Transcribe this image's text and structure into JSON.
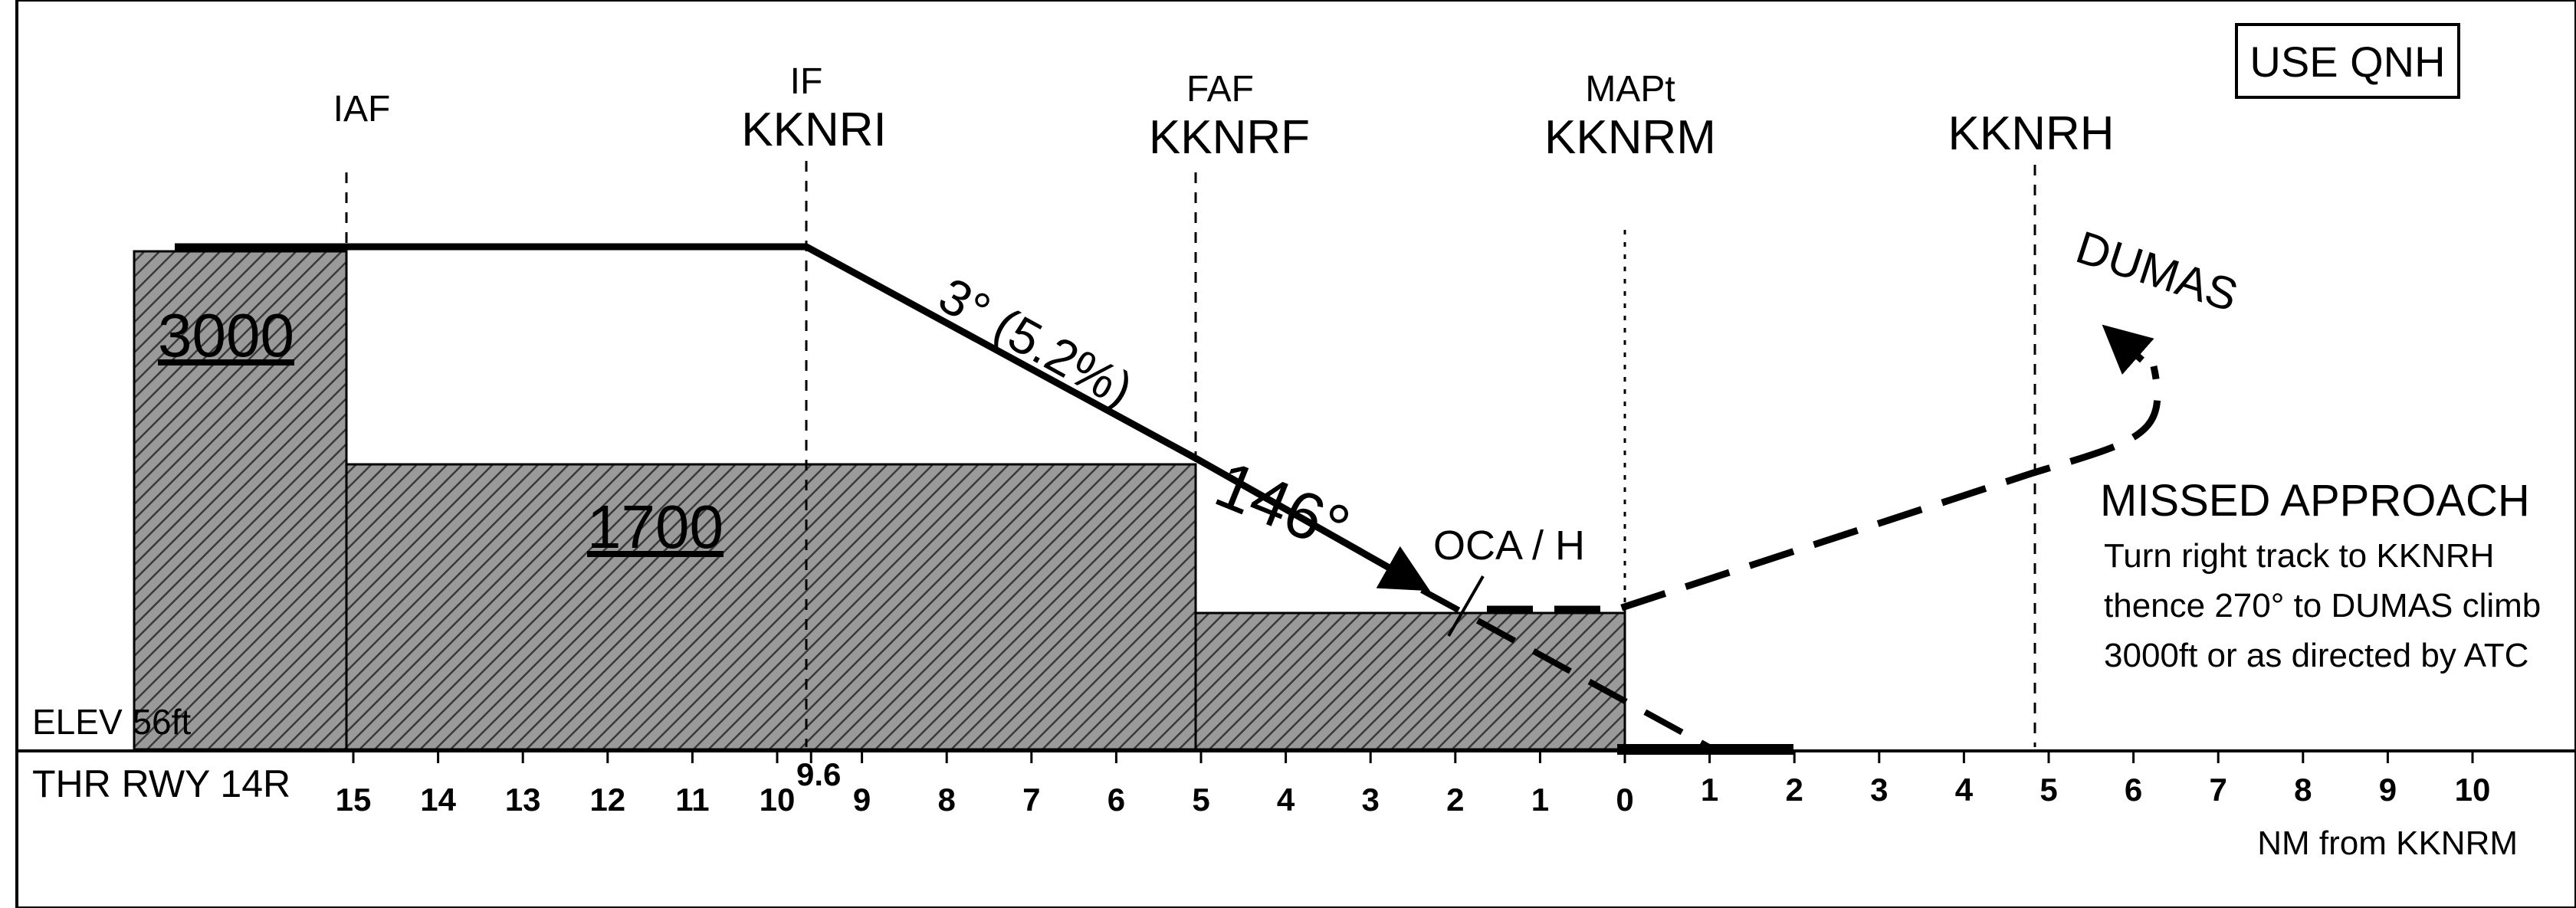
{
  "use_qnh": "USE QNH",
  "fixes": {
    "iaf": {
      "role": "IAF",
      "id": ""
    },
    "if": {
      "role": "IF",
      "id": "KKNRI"
    },
    "faf": {
      "role": "FAF",
      "id": "KKNRF"
    },
    "mapt": {
      "role": "MAPt",
      "id": "KKNRM"
    },
    "holding": {
      "role": "",
      "id": "KKNRH"
    }
  },
  "glide_path": "3° (5.2%)",
  "final_track": "146°",
  "oca_label": "OCA / H",
  "segment_altitudes": {
    "initial": "3000",
    "intermediate": "1700"
  },
  "elevation": "ELEV 56ft",
  "threshold": "THR RWY 14R",
  "distance_unit": "NM from KKNRM",
  "missed_approach": {
    "title": "MISSED APPROACH",
    "lines": [
      "Turn right track to KKNRH",
      "thence 270° to DUMAS climb",
      "3000ft or as directed by ATC"
    ],
    "fix": "DUMAS"
  },
  "distance_ticks": {
    "before_mapt": [
      "15",
      "14",
      "13",
      "12",
      "11",
      "10",
      "9.6",
      "9",
      "8",
      "7",
      "6",
      "5",
      "4",
      "3",
      "2",
      "1",
      "0"
    ],
    "after_mapt": [
      "1",
      "2",
      "3",
      "4",
      "5",
      "6",
      "7",
      "8",
      "9",
      "10"
    ]
  }
}
